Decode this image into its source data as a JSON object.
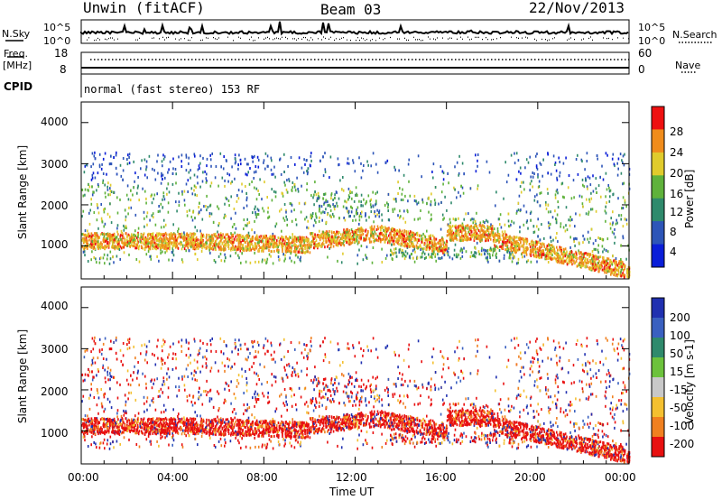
{
  "header": {
    "station": "Unwin (fitACF)",
    "beam": "Beam 03",
    "date": "22/Nov/2013"
  },
  "strip_panels": {
    "nsky_label": "N.Sky",
    "nsearch_label": "N.Search",
    "nsky_ticks": [
      "10^5",
      "10^0"
    ],
    "nsearch_ticks": [
      "10^5",
      "10^0"
    ],
    "freq_label": "Freq.",
    "freq_unit": "[MHz]",
    "freq_ticks": [
      "18",
      "8"
    ],
    "nave_label": "Nave",
    "nave_ticks": [
      "60",
      "0"
    ],
    "cpid_label": "CPID",
    "cpid_text": "normal (fast stereo) 153 RF"
  },
  "chart_data": [
    {
      "type": "heatmap",
      "ylabel": "Slant Range [km]",
      "xlabel": "",
      "x_range_hours": [
        0,
        24
      ],
      "ylim": [
        200,
        4500
      ],
      "y_ticks": [
        "1000",
        "2000",
        "3000",
        "4000"
      ],
      "x_ticks": [
        "00:00",
        "04:00",
        "08:00",
        "12:00",
        "16:00",
        "20:00",
        "00:00"
      ],
      "colorbar": {
        "label": "Power [dB]",
        "ticks": [
          "4",
          "8",
          "12",
          "16",
          "20",
          "24",
          "28"
        ],
        "colors": [
          "#0a1ed8",
          "#2d55b8",
          "#2f8a6c",
          "#5fb23b",
          "#e0cb2c",
          "#f08c1c",
          "#ee1010"
        ]
      },
      "grid": false
    },
    {
      "type": "heatmap",
      "ylabel": "Slant Range [km]",
      "xlabel": "Time UT",
      "x_range_hours": [
        0,
        24
      ],
      "ylim": [
        200,
        4500
      ],
      "y_ticks": [
        "1000",
        "2000",
        "3000",
        "4000"
      ],
      "x_ticks": [
        "00:00",
        "04:00",
        "08:00",
        "12:00",
        "16:00",
        "20:00",
        "00:00"
      ],
      "colorbar": {
        "label": "Velocity [m s-1]",
        "ticks": [
          "200",
          "100",
          "50",
          "15",
          "-15",
          "-50",
          "-100",
          "-200"
        ],
        "colors": [
          "#2030b0",
          "#3a60c0",
          "#2f8a6c",
          "#6cc23c",
          "#c8c8c8",
          "#f4c030",
          "#f08020",
          "#e81010"
        ]
      },
      "grid": false
    }
  ]
}
